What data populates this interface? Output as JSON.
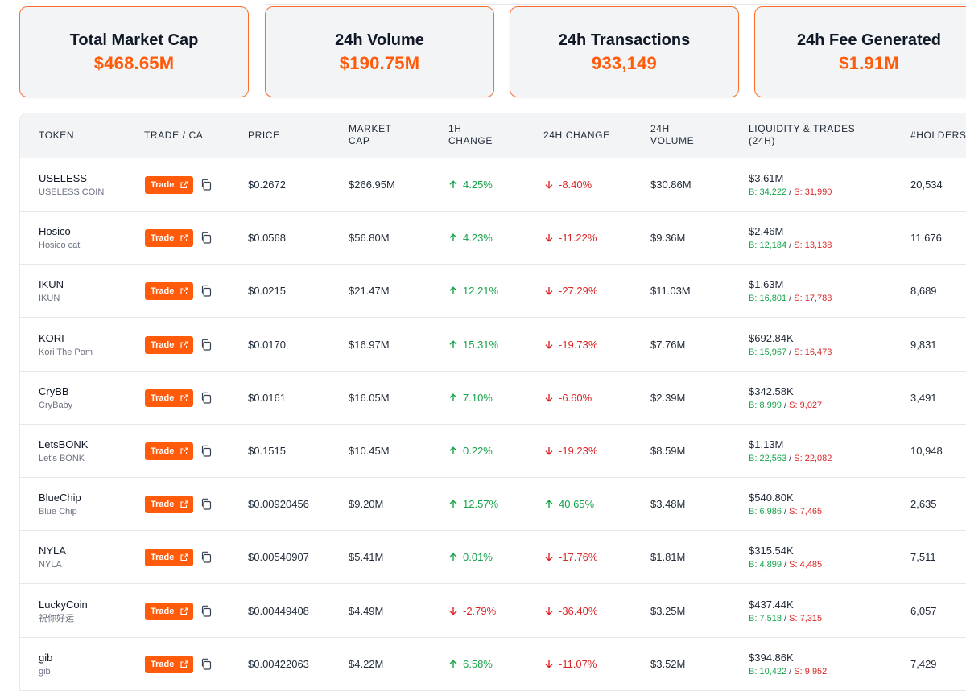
{
  "stats": [
    {
      "title": "Total Market Cap",
      "value": "$468.65M"
    },
    {
      "title": "24h Volume",
      "value": "$190.75M"
    },
    {
      "title": "24h Transactions",
      "value": "933,149"
    },
    {
      "title": "24h Fee Generated",
      "value": "$1.91M"
    }
  ],
  "headers": {
    "token": "TOKEN",
    "trade": "TRADE / CA",
    "price": "PRICE",
    "mcap_1": "MARKET",
    "mcap_2": "CAP",
    "h1_1": "1H",
    "h1_2": "CHANGE",
    "h24": "24H CHANGE",
    "vol_1": "24H",
    "vol_2": "VOLUME",
    "liq_1": "LIQUIDITY & TRADES",
    "liq_2": "(24H)",
    "holders": "#HOLDERS"
  },
  "trade_label": "Trade",
  "buy_prefix": "B:",
  "sell_prefix": "S:",
  "colors": {
    "accent": "#ff5b0a",
    "up": "#16a34a",
    "down": "#dc2626"
  },
  "icons": {
    "external": "external-link-icon",
    "copy": "copy-icon",
    "up": "arrow-up-icon",
    "down": "arrow-down-icon"
  },
  "rows": [
    {
      "symbol": "USELESS",
      "name": "USELESS COIN",
      "price": "$0.2672",
      "mcap": "$266.95M",
      "h1": "4.25%",
      "h1_dir": "up",
      "h24": "-8.40%",
      "h24_dir": "down",
      "volume": "$30.86M",
      "liquidity": "$3.61M",
      "buys": "34,222",
      "sells": "31,990",
      "holders": "20,534"
    },
    {
      "symbol": "Hosico",
      "name": "Hosico cat",
      "price": "$0.0568",
      "mcap": "$56.80M",
      "h1": "4.23%",
      "h1_dir": "up",
      "h24": "-11.22%",
      "h24_dir": "down",
      "volume": "$9.36M",
      "liquidity": "$2.46M",
      "buys": "12,184",
      "sells": "13,138",
      "holders": "11,676"
    },
    {
      "symbol": "IKUN",
      "name": "IKUN",
      "price": "$0.0215",
      "mcap": "$21.47M",
      "h1": "12.21%",
      "h1_dir": "up",
      "h24": "-27.29%",
      "h24_dir": "down",
      "volume": "$11.03M",
      "liquidity": "$1.63M",
      "buys": "16,801",
      "sells": "17,783",
      "holders": "8,689"
    },
    {
      "symbol": "KORI",
      "name": "Kori The Pom",
      "price": "$0.0170",
      "mcap": "$16.97M",
      "h1": "15.31%",
      "h1_dir": "up",
      "h24": "-19.73%",
      "h24_dir": "down",
      "volume": "$7.76M",
      "liquidity": "$692.84K",
      "buys": "15,967",
      "sells": "16,473",
      "holders": "9,831"
    },
    {
      "symbol": "CryBB",
      "name": "CryBaby",
      "price": "$0.0161",
      "mcap": "$16.05M",
      "h1": "7.10%",
      "h1_dir": "up",
      "h24": "-6.60%",
      "h24_dir": "down",
      "volume": "$2.39M",
      "liquidity": "$342.58K",
      "buys": "8,999",
      "sells": "9,027",
      "holders": "3,491"
    },
    {
      "symbol": "LetsBONK",
      "name": "Let's BONK",
      "price": "$0.1515",
      "mcap": "$10.45M",
      "h1": "0.22%",
      "h1_dir": "up",
      "h24": "-19.23%",
      "h24_dir": "down",
      "volume": "$8.59M",
      "liquidity": "$1.13M",
      "buys": "22,563",
      "sells": "22,082",
      "holders": "10,948"
    },
    {
      "symbol": "BlueChip",
      "name": "Blue Chip",
      "price": "$0.00920456",
      "mcap": "$9.20M",
      "h1": "12.57%",
      "h1_dir": "up",
      "h24": "40.65%",
      "h24_dir": "up",
      "volume": "$3.48M",
      "liquidity": "$540.80K",
      "buys": "6,986",
      "sells": "7,465",
      "holders": "2,635"
    },
    {
      "symbol": "NYLA",
      "name": "NYLA",
      "price": "$0.00540907",
      "mcap": "$5.41M",
      "h1": "0.01%",
      "h1_dir": "up",
      "h24": "-17.76%",
      "h24_dir": "down",
      "volume": "$1.81M",
      "liquidity": "$315.54K",
      "buys": "4,899",
      "sells": "4,485",
      "holders": "7,511"
    },
    {
      "symbol": "LuckyCoin",
      "name": "祝你好运",
      "price": "$0.00449408",
      "mcap": "$4.49M",
      "h1": "-2.79%",
      "h1_dir": "down",
      "h24": "-36.40%",
      "h24_dir": "down",
      "volume": "$3.25M",
      "liquidity": "$437.44K",
      "buys": "7,518",
      "sells": "7,315",
      "holders": "6,057"
    },
    {
      "symbol": "gib",
      "name": "gib",
      "price": "$0.00422063",
      "mcap": "$4.22M",
      "h1": "6.58%",
      "h1_dir": "up",
      "h24": "-11.07%",
      "h24_dir": "down",
      "volume": "$3.52M",
      "liquidity": "$394.86K",
      "buys": "10,422",
      "sells": "9,952",
      "holders": "7,429"
    }
  ]
}
